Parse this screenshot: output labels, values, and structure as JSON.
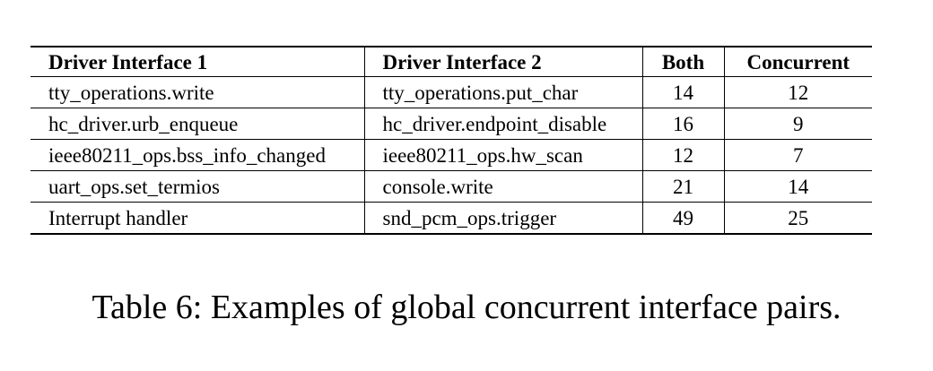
{
  "table": {
    "headers": [
      "Driver Interface 1",
      "Driver Interface 2",
      "Both",
      "Concurrent"
    ],
    "rows": [
      [
        "tty_operations.write",
        "tty_operations.put_char",
        "14",
        "12"
      ],
      [
        "hc_driver.urb_enqueue",
        "hc_driver.endpoint_disable",
        "16",
        "9"
      ],
      [
        "ieee80211_ops.bss_info_changed",
        "ieee80211_ops.hw_scan",
        "12",
        "7"
      ],
      [
        "uart_ops.set_termios",
        "console.write",
        "21",
        "14"
      ],
      [
        "Interrupt handler",
        "snd_pcm_ops.trigger",
        "49",
        "25"
      ]
    ]
  },
  "caption": "Table 6: Examples of global concurrent interface pairs."
}
